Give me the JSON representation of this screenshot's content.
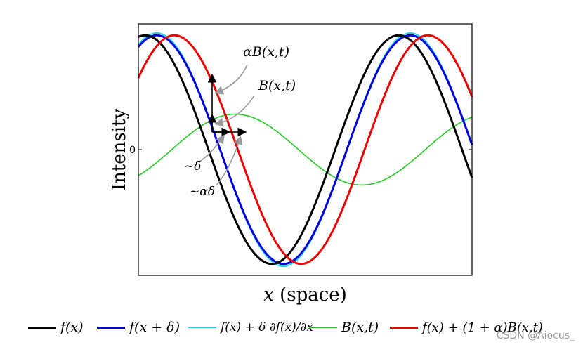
{
  "chart_data": {
    "type": "line",
    "xlabel": "x (space)",
    "ylabel": "Intensity",
    "yticks": [
      "0"
    ],
    "xlim": [
      0,
      1
    ],
    "ylim": [
      -1.1,
      1.1
    ],
    "series": [
      {
        "name": "f(x)",
        "color": "#000000",
        "width": 3,
        "amplitude": 1.0,
        "shift": 0.0
      },
      {
        "name": "f(x + δ)",
        "color": "#0000dd",
        "width": 3,
        "amplitude": 1.0,
        "shift": 0.035
      },
      {
        "name": "f(x) + δ ∂f(x)/∂x",
        "color": "#22d3e6",
        "width": 2,
        "amplitude": 1.02,
        "shift": 0.035
      },
      {
        "name": "B(x,t)",
        "color": "#22cc22",
        "width": 1.6,
        "amplitude": 0.31,
        "shift": 0.27
      },
      {
        "name": "f(x) + (1 + α)B(x,t)",
        "color": "#ee0000",
        "width": 3,
        "amplitude": 1.0,
        "shift": 0.088
      }
    ],
    "annotations": [
      {
        "text": "αB(x,t)"
      },
      {
        "text": "B(x,t)"
      },
      {
        "text": "~δ"
      },
      {
        "text": "~αδ"
      }
    ]
  },
  "watermark": "CSDN @Aiocus_"
}
